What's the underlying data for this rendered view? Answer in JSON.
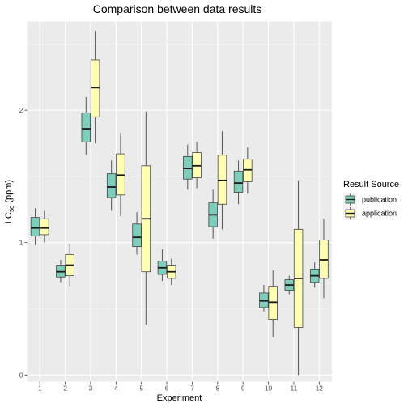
{
  "chart_data": {
    "type": "boxplot",
    "title": "Comparison between data results",
    "xlabel": "Experiment",
    "ylabel_main": "LC",
    "ylabel_sub": "50",
    "ylabel_unit": " (ppm)",
    "ylim": [
      -0.05,
      2.67
    ],
    "yticks": [
      0,
      1,
      2
    ],
    "categories": [
      "1",
      "2",
      "3",
      "4",
      "5",
      "6",
      "7",
      "8",
      "9",
      "10",
      "11",
      "12"
    ],
    "legend_title": "Result Source",
    "legend_position": "right",
    "grid": true,
    "series": [
      {
        "name": "publication",
        "color": "#7fcdbb",
        "boxes": [
          {
            "min": 0.98,
            "q1": 1.05,
            "median": 1.11,
            "q3": 1.19,
            "max": 1.26
          },
          {
            "min": 0.7,
            "q1": 0.74,
            "median": 0.78,
            "q3": 0.83,
            "max": 0.87
          },
          {
            "min": 1.66,
            "q1": 1.76,
            "median": 1.86,
            "q3": 1.98,
            "max": 2.1
          },
          {
            "min": 1.24,
            "q1": 1.34,
            "median": 1.42,
            "q3": 1.52,
            "max": 1.62
          },
          {
            "min": 0.91,
            "q1": 0.97,
            "median": 1.04,
            "q3": 1.14,
            "max": 1.23
          },
          {
            "min": 0.71,
            "q1": 0.76,
            "median": 0.81,
            "q3": 0.86,
            "max": 0.95
          },
          {
            "min": 1.4,
            "q1": 1.48,
            "median": 1.56,
            "q3": 1.65,
            "max": 1.74
          },
          {
            "min": 1.03,
            "q1": 1.12,
            "median": 1.21,
            "q3": 1.3,
            "max": 1.4
          },
          {
            "min": 1.29,
            "q1": 1.38,
            "median": 1.45,
            "q3": 1.54,
            "max": 1.62
          },
          {
            "min": 0.48,
            "q1": 0.51,
            "median": 0.56,
            "q3": 0.62,
            "max": 0.68
          },
          {
            "min": 0.61,
            "q1": 0.64,
            "median": 0.68,
            "q3": 0.72,
            "max": 0.75
          },
          {
            "min": 0.66,
            "q1": 0.7,
            "median": 0.75,
            "q3": 0.8,
            "max": 0.85
          }
        ]
      },
      {
        "name": "application",
        "color": "#ffffb3",
        "boxes": [
          {
            "min": 1.0,
            "q1": 1.06,
            "median": 1.11,
            "q3": 1.18,
            "max": 1.24
          },
          {
            "min": 0.67,
            "q1": 0.75,
            "median": 0.83,
            "q3": 0.91,
            "max": 0.99
          },
          {
            "min": 1.75,
            "q1": 1.95,
            "median": 2.17,
            "q3": 2.38,
            "max": 2.6
          },
          {
            "min": 1.2,
            "q1": 1.36,
            "median": 1.51,
            "q3": 1.67,
            "max": 1.83
          },
          {
            "min": 0.38,
            "q1": 0.78,
            "median": 1.18,
            "q3": 1.58,
            "max": 1.99
          },
          {
            "min": 0.68,
            "q1": 0.73,
            "median": 0.78,
            "q3": 0.83,
            "max": 0.88
          },
          {
            "min": 1.41,
            "q1": 1.49,
            "median": 1.58,
            "q3": 1.68,
            "max": 1.76
          },
          {
            "min": 1.1,
            "q1": 1.29,
            "median": 1.47,
            "q3": 1.66,
            "max": 1.84
          },
          {
            "min": 1.37,
            "q1": 1.46,
            "median": 1.55,
            "q3": 1.63,
            "max": 1.72
          },
          {
            "min": 0.29,
            "q1": 0.42,
            "median": 0.55,
            "q3": 0.67,
            "max": 0.79
          },
          {
            "min": 0.0,
            "q1": 0.36,
            "median": 0.73,
            "q3": 1.1,
            "max": 1.47
          },
          {
            "min": 0.58,
            "q1": 0.73,
            "median": 0.87,
            "q3": 1.02,
            "max": 1.18
          }
        ]
      }
    ]
  }
}
